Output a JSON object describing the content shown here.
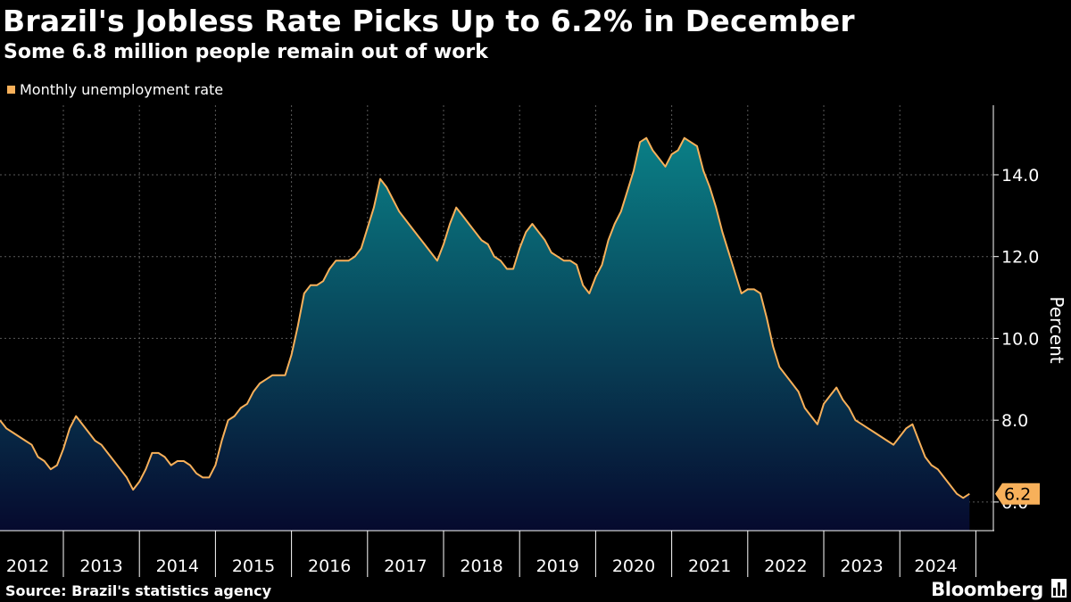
{
  "title": "Brazil's Jobless Rate Picks Up to 6.2% in December",
  "subtitle": "Some 6.8 million people remain out of work",
  "source": "Source: Brazil's statistics agency",
  "brand": "Bloomberg",
  "colors": {
    "background": "#000000",
    "line": "#f7b05a",
    "fill_top": "#0a7f86",
    "fill_bottom": "#060a2e",
    "grid": "#5a5a5a",
    "axis": "#ffffff"
  },
  "chart_data": {
    "type": "area",
    "title": "Brazil's Jobless Rate Picks Up to 6.2% in December",
    "subtitle": "Some 6.8 million people remain out of work",
    "series": [
      {
        "name": "Monthly unemployment rate",
        "start": "2012-03",
        "frequency": "monthly",
        "values": [
          8.0,
          7.8,
          7.7,
          7.6,
          7.5,
          7.4,
          7.1,
          7.0,
          6.8,
          6.9,
          7.3,
          7.8,
          8.1,
          7.9,
          7.7,
          7.5,
          7.4,
          7.2,
          7.0,
          6.8,
          6.6,
          6.3,
          6.5,
          6.8,
          7.2,
          7.2,
          7.1,
          6.9,
          7.0,
          7.0,
          6.9,
          6.7,
          6.6,
          6.6,
          6.9,
          7.5,
          8.0,
          8.1,
          8.3,
          8.4,
          8.7,
          8.9,
          9.0,
          9.1,
          9.1,
          9.1,
          9.6,
          10.3,
          11.1,
          11.3,
          11.3,
          11.4,
          11.7,
          11.9,
          11.9,
          11.9,
          12.0,
          12.2,
          12.7,
          13.2,
          13.9,
          13.7,
          13.4,
          13.1,
          12.9,
          12.7,
          12.5,
          12.3,
          12.1,
          11.9,
          12.3,
          12.8,
          13.2,
          13.0,
          12.8,
          12.6,
          12.4,
          12.3,
          12.0,
          11.9,
          11.7,
          11.7,
          12.2,
          12.6,
          12.8,
          12.6,
          12.4,
          12.1,
          12.0,
          11.9,
          11.9,
          11.8,
          11.3,
          11.1,
          11.5,
          11.8,
          12.4,
          12.8,
          13.1,
          13.6,
          14.1,
          14.8,
          14.9,
          14.6,
          14.4,
          14.2,
          14.5,
          14.6,
          14.9,
          14.8,
          14.7,
          14.1,
          13.7,
          13.2,
          12.6,
          12.1,
          11.6,
          11.1,
          11.2,
          11.2,
          11.1,
          10.5,
          9.8,
          9.3,
          9.1,
          8.9,
          8.7,
          8.3,
          8.1,
          7.9,
          8.4,
          8.6,
          8.8,
          8.5,
          8.3,
          8.0,
          7.9,
          7.8,
          7.7,
          7.6,
          7.5,
          7.4,
          7.6,
          7.8,
          7.9,
          7.5,
          7.1,
          6.9,
          6.8,
          6.6,
          6.4,
          6.2,
          6.1,
          6.2
        ]
      }
    ],
    "xlabel": "",
    "ylabel": "Percent",
    "x_ticks": [
      "2012",
      "2013",
      "2014",
      "2015",
      "2016",
      "2017",
      "2018",
      "2019",
      "2020",
      "2021",
      "2022",
      "2023",
      "2024"
    ],
    "y_ticks": [
      "6.0",
      "8.0",
      "10.0",
      "12.0",
      "14.0"
    ],
    "ylim": [
      5.3,
      15.7
    ],
    "last_value_label": "6.2",
    "legend_position": "top-left",
    "grid": true
  }
}
